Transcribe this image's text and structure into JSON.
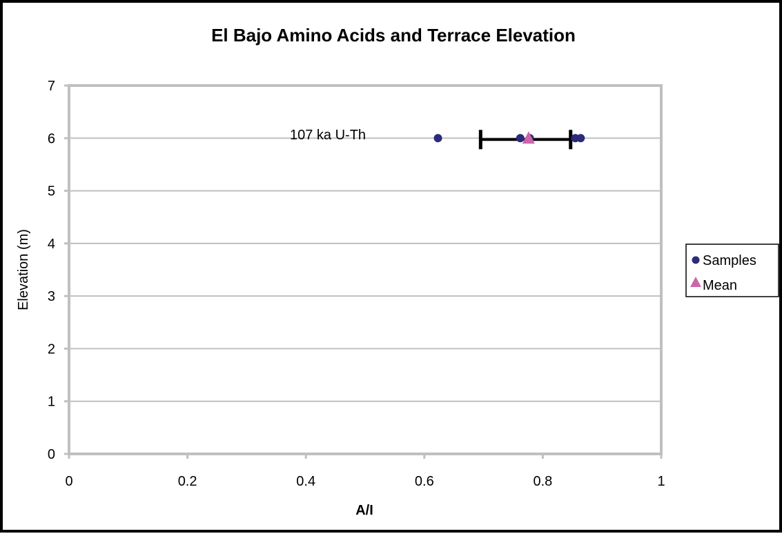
{
  "chart_data": {
    "type": "scatter",
    "title": "El Bajo Amino Acids and Terrace Elevation",
    "xlabel": "A/I",
    "ylabel": "Elevation (m)",
    "xlim": [
      0,
      1
    ],
    "ylim": [
      0,
      7
    ],
    "x_ticks": [
      "0",
      "0.2",
      "0.4",
      "0.6",
      "0.8",
      "1"
    ],
    "y_ticks": [
      "0",
      "1",
      "2",
      "3",
      "4",
      "5",
      "6",
      "7"
    ],
    "grid": "horizontal",
    "legend_position": "right",
    "annotation": {
      "text": "107 ka U-Th"
    },
    "series": [
      {
        "name": "Samples",
        "marker": "circle",
        "color": "#2b2a7b",
        "points": [
          {
            "x": 0.623,
            "y": 6.0
          },
          {
            "x": 0.762,
            "y": 6.0
          },
          {
            "x": 0.778,
            "y": 6.0
          },
          {
            "x": 0.855,
            "y": 6.0
          },
          {
            "x": 0.864,
            "y": 6.0
          }
        ]
      },
      {
        "name": "Mean",
        "marker": "triangle",
        "color": "#cc66a8",
        "points": [
          {
            "x": 0.776,
            "y": 6.0
          }
        ],
        "x_error": {
          "minus": 0.081,
          "plus": 0.071
        }
      }
    ],
    "colors": {
      "frame": "#000000",
      "grid": "#c0c0c0",
      "plot_border": "#c0c0c0",
      "error_bar": "#000000"
    }
  }
}
